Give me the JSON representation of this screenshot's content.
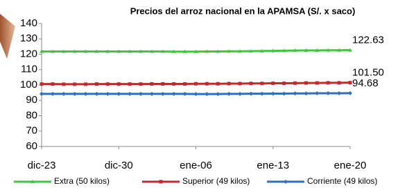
{
  "chart_data": {
    "type": "line",
    "title": "Precios del arroz nacional en la APAMSA (S/. x saco)",
    "categories": [
      "dic-23",
      null,
      null,
      null,
      null,
      null,
      null,
      "dic-30",
      null,
      null,
      null,
      null,
      null,
      null,
      "ene-06",
      null,
      null,
      null,
      null,
      null,
      null,
      "ene-13",
      null,
      null,
      null,
      null,
      null,
      null,
      "ene-20"
    ],
    "series": [
      {
        "name": "Extra (50 kilos)",
        "color": "#3ec83e",
        "marker": "triangle",
        "values": [
          121.8,
          121.8,
          121.8,
          121.8,
          121.8,
          121.8,
          121.8,
          121.8,
          121.8,
          121.8,
          121.8,
          121.8,
          121.7,
          121.7,
          121.7,
          121.8,
          121.8,
          121.9,
          121.9,
          122.0,
          122.1,
          122.2,
          122.3,
          122.4,
          122.5,
          122.5,
          122.6,
          122.6,
          122.63
        ],
        "value_labels": [
          null,
          null,
          null,
          null,
          null,
          null,
          null,
          null,
          null,
          null,
          null,
          null,
          null,
          null,
          null,
          null,
          null,
          null,
          null,
          null,
          null,
          null,
          null,
          null,
          null,
          null,
          null,
          null,
          "122.63"
        ]
      },
      {
        "name": "Superior (49 kilos)",
        "color": "#be2a2e",
        "marker": "square",
        "values": [
          100.6,
          100.6,
          100.5,
          100.5,
          100.5,
          100.6,
          100.6,
          100.6,
          100.6,
          100.6,
          100.7,
          100.7,
          100.7,
          100.7,
          100.8,
          100.8,
          100.8,
          100.9,
          100.9,
          101.0,
          101.0,
          101.1,
          101.1,
          101.2,
          101.3,
          101.3,
          101.4,
          101.4,
          101.5
        ],
        "value_labels": [
          null,
          null,
          null,
          null,
          null,
          null,
          null,
          null,
          null,
          null,
          null,
          null,
          null,
          null,
          null,
          null,
          null,
          null,
          null,
          null,
          null,
          null,
          null,
          null,
          null,
          null,
          null,
          null,
          "101.50"
        ]
      },
      {
        "name": "Corriente (49 kilos)",
        "color": "#2a6fc0",
        "marker": "diamond",
        "values": [
          94.2,
          94.2,
          94.2,
          94.2,
          94.2,
          94.2,
          94.2,
          94.2,
          94.2,
          94.2,
          94.2,
          94.2,
          94.2,
          94.2,
          94.1,
          94.1,
          94.1,
          94.2,
          94.2,
          94.3,
          94.3,
          94.4,
          94.4,
          94.5,
          94.5,
          94.6,
          94.6,
          94.6,
          94.68
        ],
        "value_labels": [
          null,
          null,
          null,
          null,
          null,
          null,
          null,
          null,
          null,
          null,
          null,
          null,
          null,
          null,
          null,
          null,
          null,
          null,
          null,
          null,
          null,
          null,
          null,
          null,
          null,
          null,
          null,
          null,
          "94.68"
        ]
      }
    ],
    "ylim": [
      60,
      140
    ],
    "yticks": [
      60,
      70,
      80,
      90,
      100,
      110,
      120,
      130,
      140
    ],
    "grid": false,
    "legend": "bottom"
  }
}
